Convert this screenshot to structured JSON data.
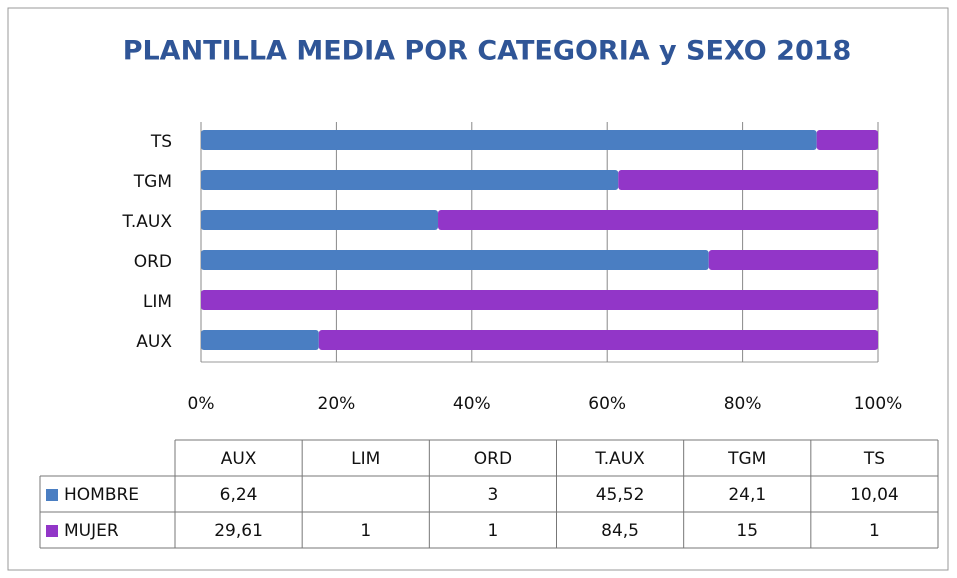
{
  "chart_data": {
    "type": "bar",
    "orientation": "horizontal",
    "stacked": "percent",
    "title": "PLANTILLA MEDIA POR CATEGORIA y SEXO 2018",
    "categories": [
      "AUX",
      "LIM",
      "ORD",
      "T.AUX",
      "TGM",
      "TS"
    ],
    "series": [
      {
        "name": "HOMBRE",
        "color": "#4a7ec2",
        "values": [
          6.24,
          null,
          3,
          45.52,
          24.1,
          10.04
        ],
        "value_labels": [
          "6,24",
          null,
          "3",
          "45,52",
          "24,1",
          "10,04"
        ]
      },
      {
        "name": "MUJER",
        "color": "#9236c8",
        "values": [
          29.61,
          1,
          1,
          84.5,
          15,
          1
        ],
        "value_labels": [
          "29,61",
          "1",
          "1",
          "84,5",
          "15",
          "1"
        ]
      }
    ],
    "xlim": [
      0,
      100
    ],
    "xticks": [
      {
        "value": 0,
        "label": "0%"
      },
      {
        "value": 20,
        "label": "20%"
      },
      {
        "value": 40,
        "label": "40%"
      },
      {
        "value": 60,
        "label": "60%"
      },
      {
        "value": 80,
        "label": "80%"
      },
      {
        "value": 100,
        "label": "100%"
      }
    ],
    "grid": true
  }
}
